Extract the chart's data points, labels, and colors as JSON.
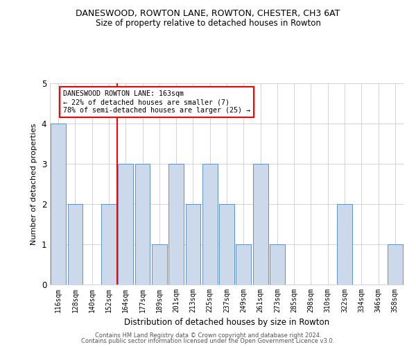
{
  "title": "DANESWOOD, ROWTON LANE, ROWTON, CHESTER, CH3 6AT",
  "subtitle": "Size of property relative to detached houses in Rowton",
  "xlabel": "Distribution of detached houses by size in Rowton",
  "ylabel": "Number of detached properties",
  "categories": [
    "116sqm",
    "128sqm",
    "140sqm",
    "152sqm",
    "164sqm",
    "177sqm",
    "189sqm",
    "201sqm",
    "213sqm",
    "225sqm",
    "237sqm",
    "249sqm",
    "261sqm",
    "273sqm",
    "285sqm",
    "298sqm",
    "310sqm",
    "322sqm",
    "334sqm",
    "346sqm",
    "358sqm"
  ],
  "values": [
    4,
    2,
    0,
    2,
    3,
    3,
    1,
    3,
    2,
    3,
    2,
    1,
    3,
    1,
    0,
    0,
    0,
    2,
    0,
    0,
    1
  ],
  "bar_color": "#ccd9ea",
  "bar_edge_color": "#6090c0",
  "subject_label": "DANESWOOD ROWTON LANE: 163sqm",
  "annotation_line1": "← 22% of detached houses are smaller (7)",
  "annotation_line2": "78% of semi-detached houses are larger (25) →",
  "annotation_box_color": "white",
  "annotation_box_edge": "red",
  "subject_line_color": "red",
  "ylim": [
    0,
    5
  ],
  "yticks": [
    0,
    1,
    2,
    3,
    4,
    5
  ],
  "footer1": "Contains HM Land Registry data © Crown copyright and database right 2024.",
  "footer2": "Contains public sector information licensed under the Open Government Licence v3.0.",
  "bg_color": "white",
  "grid_color": "#cccccc"
}
